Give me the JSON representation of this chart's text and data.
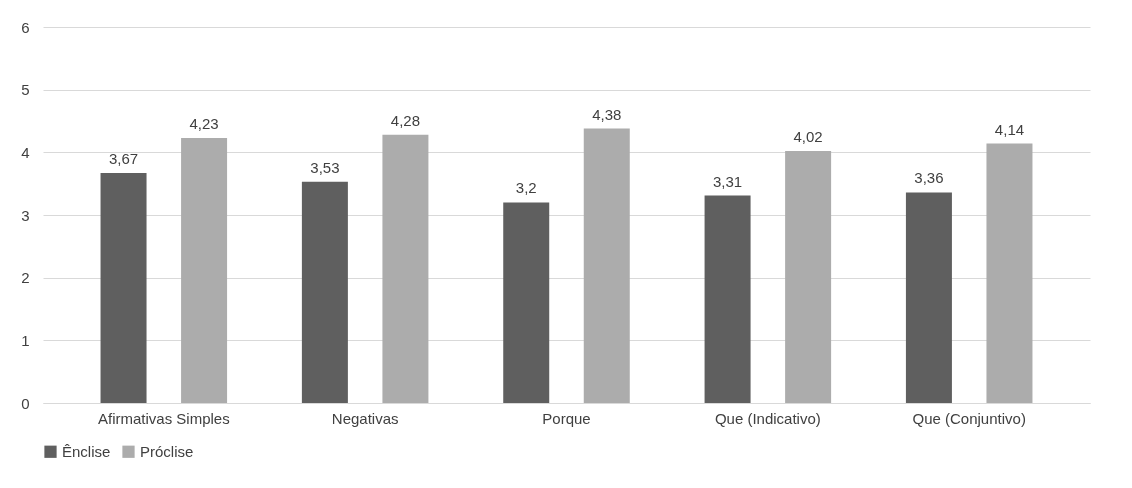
{
  "chart_data": {
    "type": "bar",
    "categories": [
      "Afirmativas Simples",
      "Negativas",
      "Porque",
      "Que (Indicativo)",
      "Que (Conjuntivo)"
    ],
    "series": [
      {
        "name": "Ênclise",
        "color": "#5f5f5f",
        "values": [
          3.67,
          3.53,
          3.2,
          3.31,
          3.36
        ],
        "value_labels": [
          "3,67",
          "3,53",
          "3,2",
          "3,31",
          "3,36"
        ]
      },
      {
        "name": "Próclise",
        "color": "#acacac",
        "values": [
          4.23,
          4.28,
          4.38,
          4.02,
          4.14
        ],
        "value_labels": [
          "4,23",
          "4,28",
          "4,38",
          "4,02",
          "4,14"
        ]
      }
    ],
    "ylim": [
      0,
      6
    ],
    "yticks": [
      0,
      1,
      2,
      3,
      4,
      5,
      6
    ],
    "grid": "y",
    "legend": "bottom"
  }
}
